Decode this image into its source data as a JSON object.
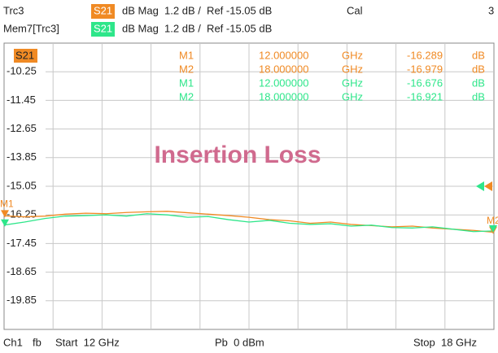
{
  "header": {
    "trace": "Trc3",
    "trace_param": "S21",
    "trace_format": "dB Mag  1.2 dB /  Ref -15.05 dB",
    "cal": "Cal",
    "channel_count": "3",
    "memory": "Mem7[Trc3]",
    "memory_param": "S21",
    "memory_format": "dB Mag  1.2 dB /  Ref -15.05 dB"
  },
  "chart_data": {
    "type": "line",
    "param_label": "S21",
    "annotation": "Insertion Loss",
    "x": [
      12,
      12.25,
      12.5,
      12.75,
      13,
      13.25,
      13.5,
      13.75,
      14,
      14.25,
      14.5,
      14.75,
      15,
      15.25,
      15.5,
      15.75,
      16,
      16.25,
      16.5,
      16.75,
      17,
      17.25,
      17.5,
      17.75,
      18
    ],
    "series": [
      {
        "name": "Trc3",
        "color": "#f08a24",
        "values": [
          -16.289,
          -16.33,
          -16.3,
          -16.22,
          -16.18,
          -16.2,
          -16.15,
          -16.12,
          -16.1,
          -16.16,
          -16.22,
          -16.28,
          -16.35,
          -16.45,
          -16.5,
          -16.6,
          -16.55,
          -16.65,
          -16.7,
          -16.75,
          -16.72,
          -16.8,
          -16.85,
          -16.9,
          -16.979
        ]
      },
      {
        "name": "Mem7[Trc3]",
        "color": "#2ee68a",
        "values": [
          -16.676,
          -16.55,
          -16.4,
          -16.3,
          -16.28,
          -16.25,
          -16.3,
          -16.2,
          -16.25,
          -16.35,
          -16.32,
          -16.45,
          -16.55,
          -16.48,
          -16.6,
          -16.65,
          -16.62,
          -16.72,
          -16.68,
          -16.78,
          -16.8,
          -16.75,
          -16.85,
          -16.95,
          -16.921
        ]
      }
    ],
    "xlim": [
      12,
      18
    ],
    "ylim": [
      -21.05,
      -9.05
    ],
    "yticks": [
      -10.25,
      -11.45,
      -12.65,
      -13.85,
      -15.05,
      -16.25,
      -17.45,
      -18.65,
      -19.85
    ],
    "grid": true,
    "marker_table": [
      [
        "M1",
        "12.000000",
        "GHz",
        "-16.289",
        "dB"
      ],
      [
        "M2",
        "18.000000",
        "GHz",
        "-16.979",
        "dB"
      ],
      [
        "M1",
        "12.000000",
        "GHz",
        "-16.676",
        "dB"
      ],
      [
        "M2",
        "18.000000",
        "GHz",
        "-16.921",
        "dB"
      ]
    ]
  },
  "footer": {
    "channel": "Ch1",
    "fb": "fb",
    "start": "Start  12 GHz",
    "power": "Pb  0 dBm",
    "stop": "Stop  18 GHz"
  }
}
